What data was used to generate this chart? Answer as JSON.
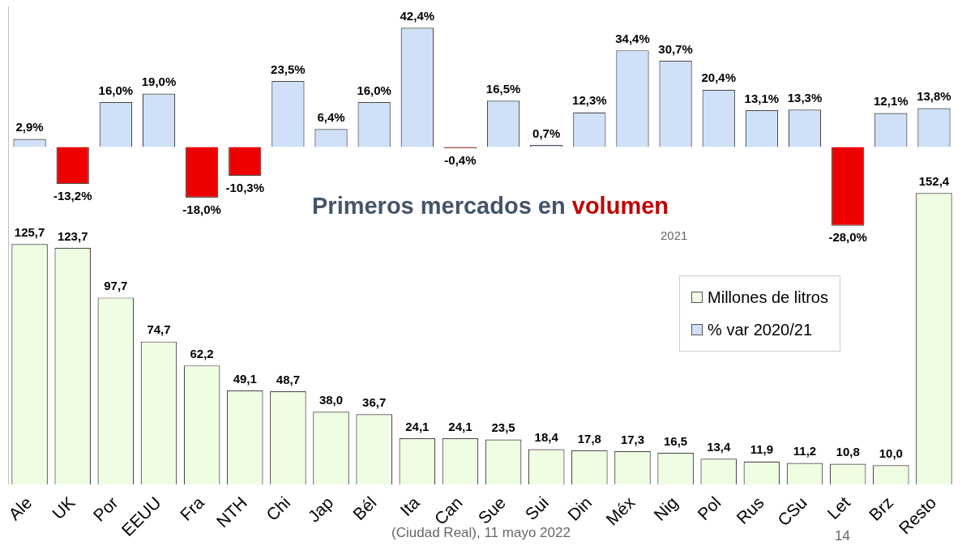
{
  "chart_data": {
    "type": "bar",
    "title": "Primeros mercados en volumen",
    "subtitle": "2021",
    "categories": [
      "Ale",
      "UK",
      "Por",
      "EEUU",
      "Fra",
      "NTH",
      "Chi",
      "Jap",
      "Bél",
      "Ita",
      "Can",
      "Sue",
      "Sui",
      "Din",
      "Méx",
      "Nig",
      "Pol",
      "Rus",
      "CSu",
      "Let",
      "Brz",
      "Resto"
    ],
    "series": [
      {
        "name": "Millones de litros",
        "color": "#effde2",
        "values": [
          125.7,
          123.7,
          97.7,
          74.7,
          62.2,
          49.1,
          48.7,
          38.0,
          36.7,
          24.1,
          24.1,
          23.5,
          18.4,
          17.8,
          17.3,
          16.5,
          13.4,
          11.9,
          11.2,
          10.8,
          10.0,
          152.4
        ],
        "value_labels": [
          "125,7",
          "123,7",
          "97,7",
          "74,7",
          "62,2",
          "49,1",
          "48,7",
          "38,0",
          "36,7",
          "24,1",
          "24,1",
          "23,5",
          "18,4",
          "17,8",
          "17,3",
          "16,5",
          "13,4",
          "11,9",
          "11,2",
          "10,8",
          "10,0",
          "152,4"
        ]
      },
      {
        "name": "% var 2020/21",
        "axis": "y2",
        "color": "#cfe0f8",
        "colors": [
          "#cfe0f8",
          "#ee0000",
          "#cfe0f8",
          "#cfe0f8",
          "#ee0000",
          "#ee0000",
          "#cfe0f8",
          "#cfe0f8",
          "#cfe0f8",
          "#cfe0f8",
          "#ee0000",
          "#cfe0f8",
          "#cfe0f8",
          "#cfe0f8",
          "#cfe0f8",
          "#cfe0f8",
          "#cfe0f8",
          "#cfe0f8",
          "#cfe0f8",
          "#ee0000",
          "#cfe0f8",
          "#cfe0f8"
        ],
        "values": [
          2.9,
          -13.2,
          16.0,
          19.0,
          -18.0,
          -10.3,
          23.5,
          6.4,
          16.0,
          42.4,
          -0.4,
          16.5,
          0.7,
          12.3,
          34.4,
          30.7,
          20.4,
          13.1,
          13.3,
          -28.0,
          12.1,
          13.8
        ],
        "value_labels": [
          "2,9%",
          "-13,2%",
          "16,0%",
          "19,0%",
          "-18,0%",
          "-10,3%",
          "23,5%",
          "6,4%",
          "16,0%",
          "42,4%",
          "-0,4%",
          "16,5%",
          "0,7%",
          "12,3%",
          "34,4%",
          "30,7%",
          "20,4%",
          "13,1%",
          "13,3%",
          "-28,0%",
          "12,1%",
          "13,8%"
        ]
      }
    ],
    "ylim": [
      0,
      250
    ],
    "y2lim": [
      -120,
      50
    ],
    "tick_labels": "x",
    "legend": "right",
    "annotations": [
      "(Ciudad Real), 11 mayo 2022",
      "14"
    ]
  }
}
